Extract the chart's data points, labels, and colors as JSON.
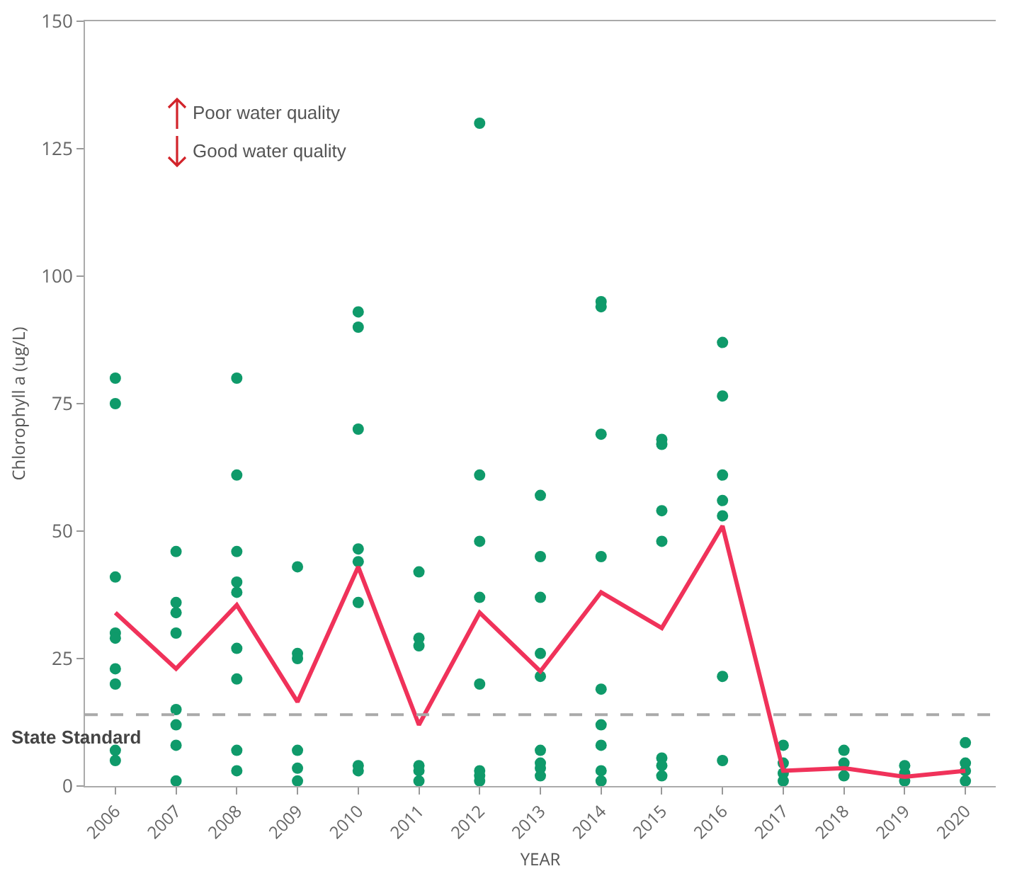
{
  "chart_data": {
    "type": "scatter",
    "xlabel": "YEAR",
    "ylabel": "Chlorophyll a (ug/L)",
    "x": [
      2006,
      2007,
      2008,
      2009,
      2010,
      2011,
      2012,
      2013,
      2014,
      2015,
      2016,
      2017,
      2018,
      2019,
      2020
    ],
    "xlim": [
      2005.5,
      2020.5
    ],
    "xticks": [
      2006,
      2007,
      2008,
      2009,
      2010,
      2011,
      2012,
      2013,
      2014,
      2015,
      2016,
      2017,
      2018,
      2019,
      2020
    ],
    "ylim": [
      0,
      150
    ],
    "yticks": [
      0,
      25,
      50,
      75,
      100,
      125,
      150
    ],
    "grid": false,
    "legend": false,
    "series": [
      {
        "type": "scatter",
        "color": "#0f9a6a",
        "marker": "circle",
        "x": [
          2006,
          2006,
          2006,
          2006,
          2006,
          2006,
          2006,
          2006,
          2006,
          2007,
          2007,
          2007,
          2007,
          2007,
          2007,
          2007,
          2007,
          2008,
          2008,
          2008,
          2008,
          2008,
          2008,
          2008,
          2008,
          2008,
          2009,
          2009,
          2009,
          2009,
          2009,
          2009,
          2010,
          2010,
          2010,
          2010,
          2010,
          2010,
          2010,
          2010,
          2011,
          2011,
          2011,
          2011,
          2011,
          2011,
          2012,
          2012,
          2012,
          2012,
          2012,
          2012,
          2012,
          2012,
          2013,
          2013,
          2013,
          2013,
          2013,
          2013,
          2013,
          2013,
          2013,
          2014,
          2014,
          2014,
          2014,
          2014,
          2014,
          2014,
          2014,
          2014,
          2015,
          2015,
          2015,
          2015,
          2015,
          2015,
          2015,
          2016,
          2016,
          2016,
          2016,
          2016,
          2016,
          2016,
          2017,
          2017,
          2017,
          2017,
          2018,
          2018,
          2018,
          2019,
          2019,
          2019,
          2020,
          2020,
          2020,
          2020
        ],
        "values": [
          80,
          75,
          41,
          30,
          29,
          23,
          20,
          7,
          5,
          46,
          36,
          34,
          30,
          15,
          12,
          8,
          1,
          80,
          61,
          46,
          40,
          38,
          27,
          21,
          7,
          3,
          43,
          26,
          25,
          7,
          3.5,
          1,
          93,
          90,
          70,
          46.5,
          44,
          36,
          4,
          3,
          42,
          29,
          27.5,
          4,
          3,
          1,
          130,
          61,
          48,
          37,
          20,
          3,
          2,
          1,
          57,
          45,
          37,
          26,
          21.5,
          7,
          4.5,
          3.5,
          2,
          95,
          94,
          69,
          45,
          19,
          12,
          8,
          3,
          1,
          68,
          67,
          54,
          48,
          5.5,
          4,
          2,
          87,
          76.5,
          61,
          56,
          53,
          21.5,
          5,
          8,
          4.5,
          2.5,
          1,
          7,
          4.5,
          2,
          4,
          2.5,
          1,
          8.5,
          4.5,
          3,
          1
        ]
      },
      {
        "type": "line",
        "color": "#f0325a",
        "values": [
          34,
          23,
          35.5,
          16.5,
          43,
          12,
          34,
          22.5,
          38,
          31,
          51,
          3,
          3.5,
          1.8,
          3
        ]
      }
    ],
    "ref_lines": [
      {
        "axis": "y",
        "value": 14,
        "label": "State Standard",
        "color": "#aaaaaa",
        "line_style": "dashed"
      }
    ],
    "annotations": [
      "Poor water quality",
      "Good water quality"
    ]
  }
}
